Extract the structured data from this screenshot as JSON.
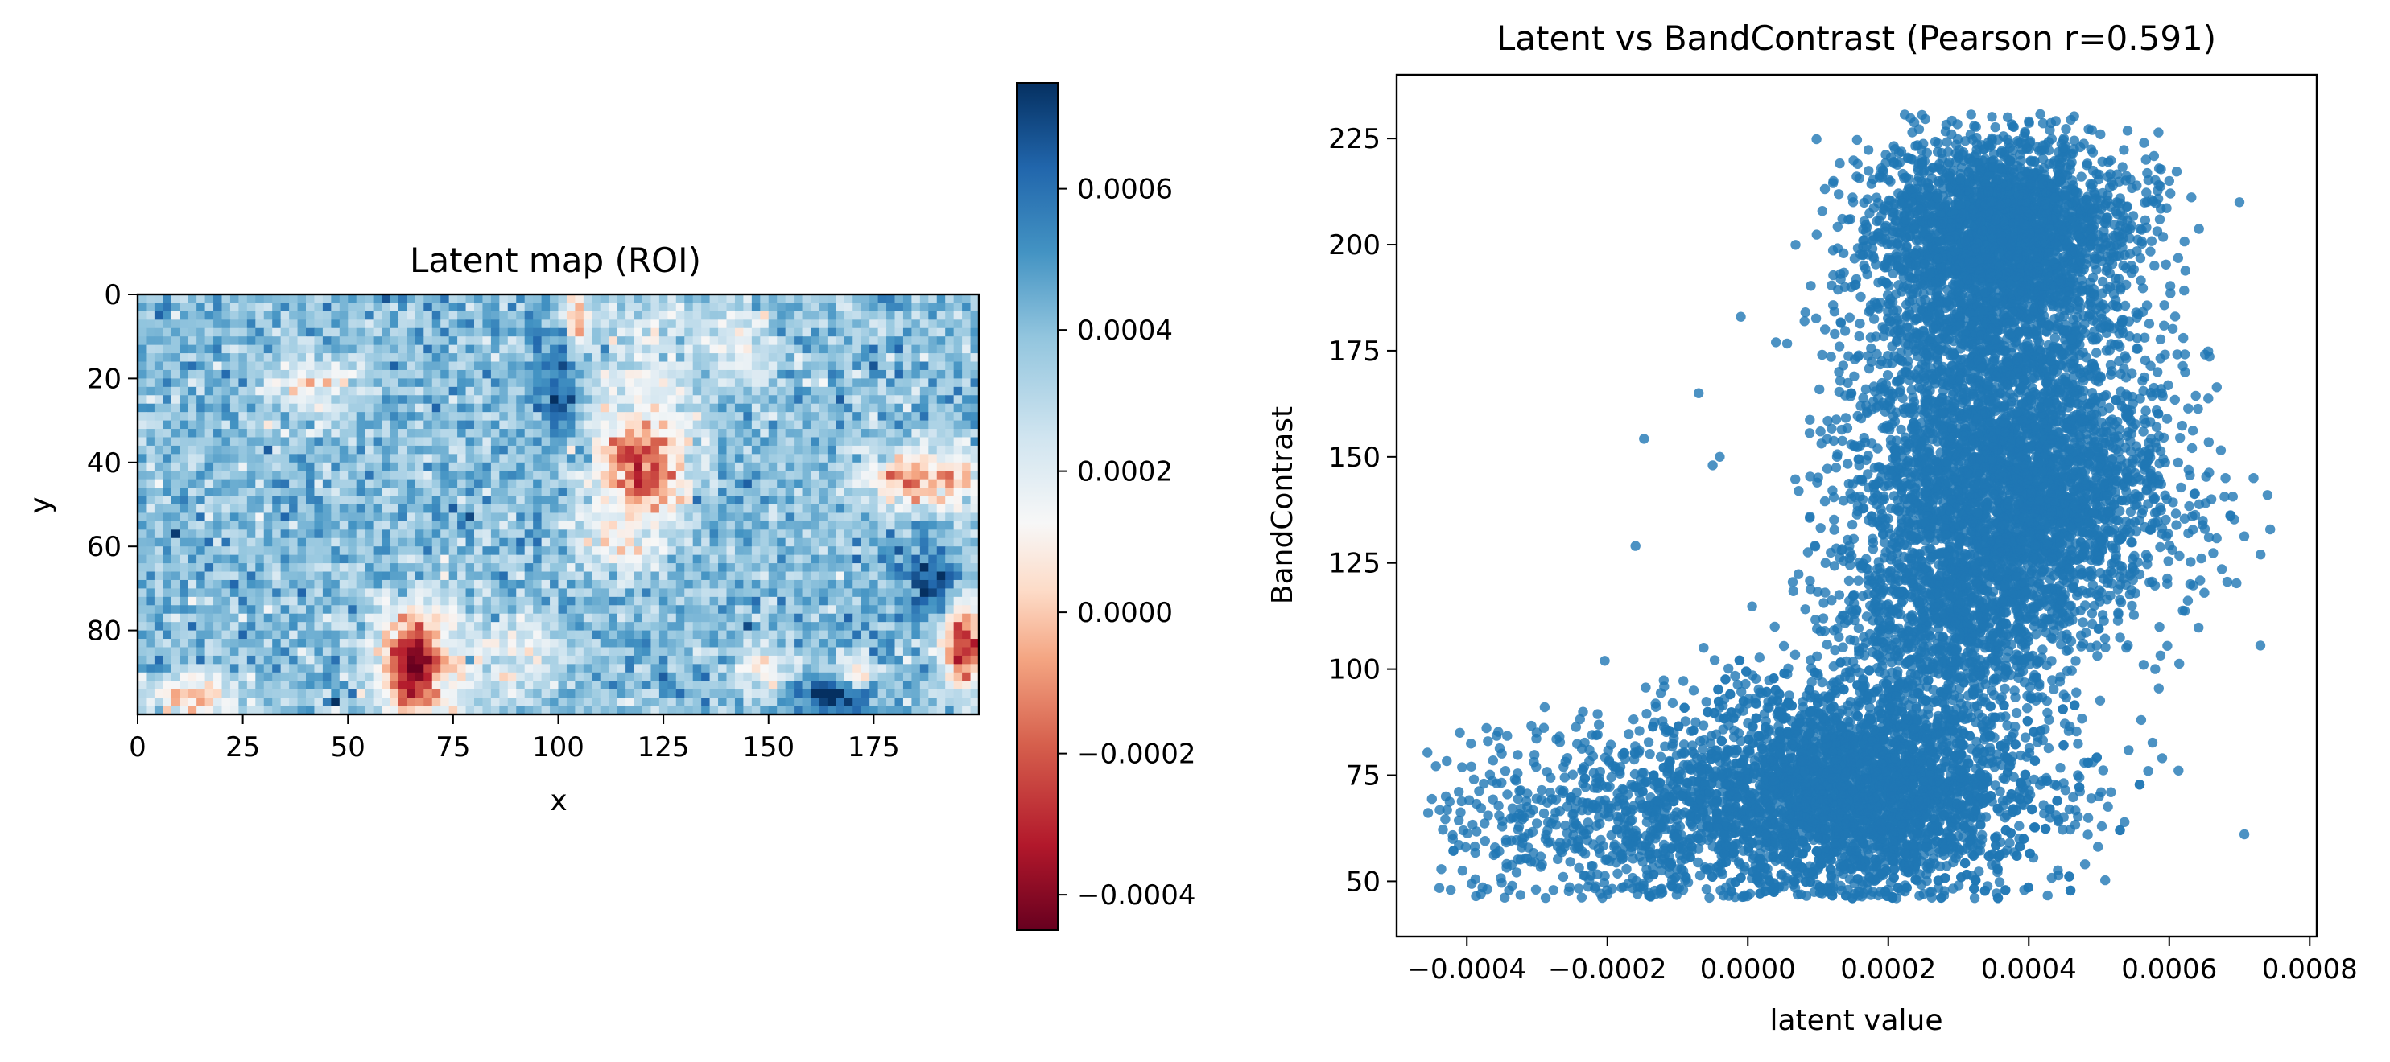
{
  "chart_data": [
    {
      "type": "heatmap",
      "title": "Latent map (ROI)",
      "xlabel": "x",
      "ylabel": "y",
      "grid": false,
      "x_range": [
        0,
        200
      ],
      "y_range": [
        0,
        100
      ],
      "x_ticks": [
        0,
        25,
        50,
        75,
        100,
        125,
        150,
        175
      ],
      "x_tick_labels": [
        "0",
        "25",
        "50",
        "75",
        "100",
        "125",
        "150",
        "175"
      ],
      "y_ticks": [
        0,
        20,
        40,
        60,
        80
      ],
      "y_tick_labels": [
        "0",
        "20",
        "40",
        "60",
        "80"
      ],
      "colormap": "RdBu",
      "colormap_low": "#67001f",
      "colormap_mid": "#f7f7f7",
      "colormap_high": "#053061",
      "value_range": [
        -0.00045,
        0.00075
      ],
      "background_value": 0.0004,
      "features": [
        {
          "x": 120,
          "y": 40,
          "rx": 11,
          "ry": 16,
          "value": -0.0004
        },
        {
          "x": 122,
          "y": 18,
          "rx": 13,
          "ry": 22,
          "value": 0.0002
        },
        {
          "x": 104,
          "y": 8,
          "rx": 3,
          "ry": 10,
          "value": -0.0002
        },
        {
          "x": 113,
          "y": 58,
          "rx": 10,
          "ry": 10,
          "value": 0.0001
        },
        {
          "x": 142,
          "y": 12,
          "rx": 10,
          "ry": 10,
          "value": 0.00015
        },
        {
          "x": 66,
          "y": 88,
          "rx": 9,
          "ry": 14,
          "value": -0.00045
        },
        {
          "x": 82,
          "y": 88,
          "rx": 9,
          "ry": 13,
          "value": 0.0002
        },
        {
          "x": 93,
          "y": 85,
          "rx": 8,
          "ry": 10,
          "value": 0.00015
        },
        {
          "x": 187,
          "y": 44,
          "rx": 16,
          "ry": 8,
          "value": -0.0001
        },
        {
          "x": 196,
          "y": 83,
          "rx": 6,
          "ry": 12,
          "value": -0.0003
        },
        {
          "x": 42,
          "y": 22,
          "rx": 14,
          "ry": 8,
          "value": 0.0001
        },
        {
          "x": 14,
          "y": 96,
          "rx": 12,
          "ry": 6,
          "value": 0.0
        },
        {
          "x": 148,
          "y": 90,
          "rx": 9,
          "ry": 6,
          "value": 0.0001
        },
        {
          "x": 165,
          "y": 95,
          "rx": 10,
          "ry": 5,
          "value": 0.00075
        },
        {
          "x": 188,
          "y": 68,
          "rx": 8,
          "ry": 10,
          "value": 0.0007
        },
        {
          "x": 172,
          "y": 90,
          "rx": 6,
          "ry": 5,
          "value": 0.00015
        },
        {
          "x": 100,
          "y": 20,
          "rx": 6,
          "ry": 14,
          "value": 0.00065
        }
      ]
    },
    {
      "type": "colorbar",
      "range": [
        -0.00045,
        0.00075
      ],
      "ticks": [
        -0.0004,
        -0.0002,
        0.0,
        0.0002,
        0.0004,
        0.0006
      ],
      "tick_labels": [
        "−0.0004",
        "−0.0002",
        "0.0000",
        "0.0002",
        "0.0004",
        "0.0006"
      ]
    },
    {
      "type": "scatter",
      "title": "Latent vs BandContrast (Pearson r=0.591)",
      "xlabel": "latent value",
      "ylabel": "BandContrast",
      "grid": false,
      "xlim": [
        -0.0005,
        0.00081
      ],
      "ylim": [
        37,
        240
      ],
      "x_ticks": [
        -0.0004,
        -0.0002,
        0.0,
        0.0002,
        0.0004,
        0.0006,
        0.0008
      ],
      "x_tick_labels": [
        "−0.0004",
        "−0.0002",
        "0.0000",
        "0.0002",
        "0.0004",
        "0.0006",
        "0.0008"
      ],
      "y_ticks": [
        50,
        75,
        100,
        125,
        150,
        175,
        200,
        225
      ],
      "y_tick_labels": [
        "50",
        "75",
        "100",
        "125",
        "150",
        "175",
        "200",
        "225"
      ],
      "marker_color": "#1f77b4",
      "clusters": [
        {
          "x_mean": 0.00015,
          "x_sd": 0.00013,
          "y_mean": 72,
          "y_sd": 12,
          "n": 3500,
          "y_min": 46
        },
        {
          "x_mean": 0.00038,
          "x_sd": 0.00011,
          "y_mean": 142,
          "y_sd": 16,
          "n": 3000
        },
        {
          "x_mean": 0.00036,
          "x_sd": 9e-05,
          "y_mean": 203,
          "y_sd": 11,
          "n": 2500
        },
        {
          "x_mean": 0.00029,
          "x_sd": 9e-05,
          "y_mean": 110,
          "y_sd": 12,
          "n": 900
        },
        {
          "x_mean": 0.00034,
          "x_sd": 0.0001,
          "y_mean": 175,
          "y_sd": 10,
          "n": 800
        },
        {
          "x_mean": -0.00018,
          "x_sd": 0.00013,
          "y_mean": 65,
          "y_sd": 11,
          "n": 700,
          "y_min": 46
        }
      ],
      "points": [
        [
          -0.00043,
          70
        ],
        [
          -0.00041,
          85
        ],
        [
          -0.00042,
          60
        ],
        [
          -0.00038,
          47
        ],
        [
          -0.00036,
          58
        ],
        [
          -0.00037,
          83
        ],
        [
          -0.00039,
          74
        ],
        [
          0.00074,
          141
        ],
        [
          0.00073,
          127
        ],
        [
          0.00072,
          145
        ],
        [
          0.0007,
          210
        ],
        [
          0.00068,
          145
        ],
        [
          0.0006,
          215
        ],
        [
          0.00066,
          140
        ],
        [
          0.00037,
          230
        ],
        [
          0.0004,
          229
        ],
        [
          0.00029,
          226
        ],
        [
          0.00043,
          227
        ],
        [
          0.00045,
          225
        ],
        [
          0.00049,
          227
        ],
        [
          0.00052,
          214
        ],
        [
          -1e-05,
          183
        ],
        [
          -7e-05,
          165
        ],
        [
          4e-05,
          177
        ],
        [
          0.00017,
          193
        ],
        [
          0.00015,
          210
        ],
        [
          0.00019,
          218
        ],
        [
          -4e-05,
          150
        ],
        [
          -5e-05,
          148
        ],
        [
          -0.00016,
          129
        ],
        [
          0.00056,
          88
        ],
        [
          0.00059,
          79
        ],
        [
          0.00057,
          76
        ],
        [
          0.00047,
          75
        ],
        [
          0.00048,
          54
        ],
        [
          0.00058,
          100
        ],
        [
          0.0005,
          70
        ],
        [
          0.00063,
          120
        ],
        [
          0.00065,
          118
        ],
        [
          0.00062,
          178
        ]
      ]
    }
  ]
}
